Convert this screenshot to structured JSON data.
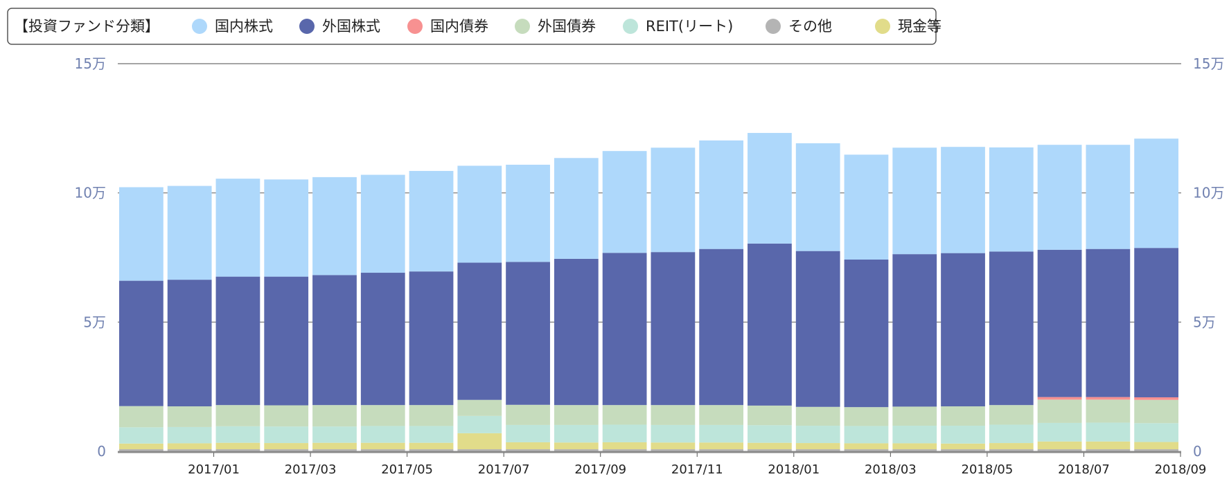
{
  "colors": {
    "domestic_stock": "#aed8fb",
    "foreign_stock": "#5967ab",
    "domestic_bond": "#f79191",
    "foreign_bond": "#c6dcbd",
    "reit": "#bde5da",
    "other": "#b4b4b4",
    "cash": "#e1dc8a",
    "axis_text": "#7081b0"
  },
  "chart_data": {
    "type": "bar",
    "stacked": true,
    "legend_title": "【投資ファンド分類】",
    "legend_position": "top-left",
    "grid": true,
    "ylim": [
      0,
      150000
    ],
    "y_ticks": [
      {
        "value": 0,
        "label": "0"
      },
      {
        "value": 50000,
        "label": "5万"
      },
      {
        "value": 100000,
        "label": "10万"
      },
      {
        "value": 150000,
        "label": "15万"
      }
    ],
    "categories": [
      "2016/12",
      "2017/01",
      "2017/02",
      "2017/03",
      "2017/04",
      "2017/05",
      "2017/06",
      "2017/07",
      "2017/08",
      "2017/09",
      "2017/10",
      "2017/11",
      "2017/12",
      "2018/01",
      "2018/02",
      "2018/03",
      "2018/04",
      "2018/05",
      "2018/06",
      "2018/07",
      "2018/08",
      "2018/09"
    ],
    "x_tick_labels": [
      "",
      "2017/01",
      "",
      "2017/03",
      "",
      "2017/05",
      "",
      "2017/07",
      "",
      "2017/09",
      "",
      "2017/11",
      "",
      "2018/01",
      "",
      "2018/03",
      "",
      "2018/05",
      "",
      "2018/07",
      "",
      "2018/09"
    ],
    "series": [
      {
        "name": "その他",
        "color_key": "other",
        "values": [
          800,
          800,
          800,
          800,
          800,
          800,
          800,
          800,
          800,
          800,
          800,
          800,
          800,
          800,
          800,
          800,
          800,
          800,
          800,
          800,
          800,
          800
        ]
      },
      {
        "name": "現金等",
        "color_key": "cash",
        "values": [
          2200,
          2300,
          2500,
          2400,
          2500,
          2500,
          2500,
          6200,
          2700,
          2600,
          2700,
          2600,
          2600,
          2500,
          2400,
          2300,
          2300,
          2200,
          2400,
          3000,
          3000,
          2800
        ]
      },
      {
        "name": "REIT(リート)",
        "color_key": "reit",
        "values": [
          6300,
          6300,
          6400,
          6400,
          6300,
          6500,
          6500,
          6700,
          6700,
          6800,
          6800,
          6800,
          6800,
          6800,
          6700,
          6700,
          6800,
          6900,
          7100,
          7200,
          7300,
          7300
        ]
      },
      {
        "name": "外国債券",
        "color_key": "foreign_bond",
        "values": [
          8200,
          8000,
          8200,
          8200,
          8300,
          8100,
          8100,
          6200,
          7800,
          7700,
          7600,
          7700,
          7700,
          7600,
          7300,
          7300,
          7400,
          7500,
          7600,
          9000,
          8900,
          9000
        ]
      },
      {
        "name": "国内債券",
        "color_key": "domestic_bond",
        "values": [
          0,
          0,
          0,
          0,
          0,
          0,
          0,
          0,
          0,
          0,
          0,
          0,
          0,
          0,
          0,
          0,
          0,
          0,
          0,
          1000,
          1000,
          1000
        ]
      },
      {
        "name": "外国株式",
        "color_key": "foreign_stock",
        "values": [
          48500,
          49000,
          49700,
          49800,
          50300,
          51200,
          51700,
          53100,
          55300,
          56600,
          58900,
          59200,
          60400,
          62700,
          60300,
          57100,
          59000,
          59300,
          59400,
          57000,
          57300,
          57800
        ]
      },
      {
        "name": "国内株式",
        "color_key": "domestic_stock",
        "values": [
          36200,
          36300,
          37900,
          37600,
          37900,
          37900,
          38900,
          37500,
          37600,
          39000,
          39400,
          40400,
          42000,
          42800,
          41700,
          40600,
          41200,
          41100,
          40300,
          40600,
          40300,
          42300
        ]
      }
    ],
    "legend_order": [
      "国内株式",
      "外国株式",
      "国内債券",
      "外国債券",
      "REIT(リート)",
      "その他",
      "現金等"
    ]
  }
}
